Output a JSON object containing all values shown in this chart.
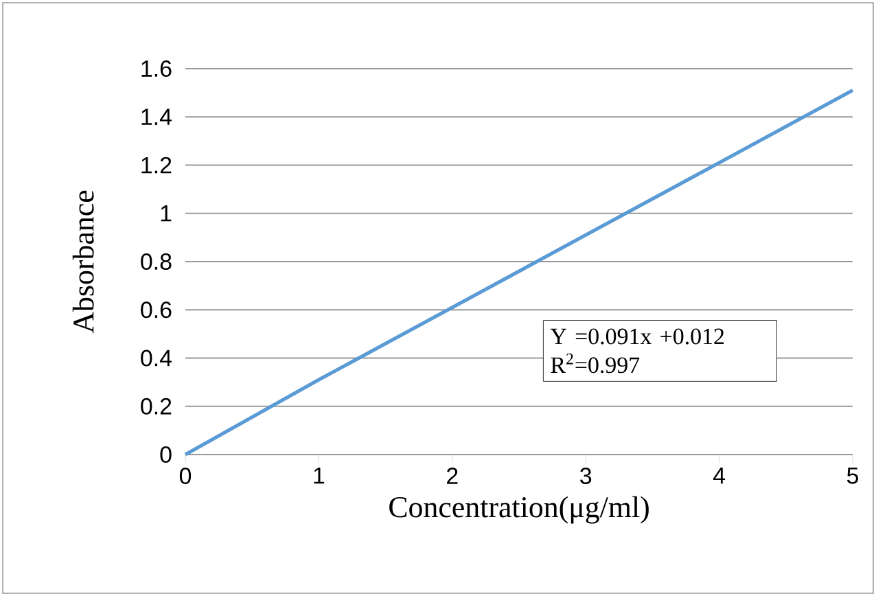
{
  "chart_data": {
    "type": "line",
    "xlabel": "Concentration(μg/ml)",
    "ylabel": "Absorbance",
    "x": [
      0,
      1,
      2,
      3,
      4,
      5
    ],
    "series": [
      {
        "color": "#5b9bd5",
        "values": [
          0.0,
          0.31,
          0.61,
          0.91,
          1.21,
          1.51
        ]
      }
    ],
    "xlim": [
      0,
      5
    ],
    "ylim": [
      0,
      1.6
    ],
    "xticks": [
      0,
      1,
      2,
      3,
      4,
      5
    ],
    "yticks": [
      0,
      0.2,
      0.4,
      0.6,
      0.8,
      1,
      1.2,
      1.4,
      1.6
    ],
    "grid": "y",
    "marker": "none",
    "line_style": "solid",
    "annotations": [
      "Y =0.091x +0.012",
      "R$^{2}$=0.997"
    ]
  }
}
